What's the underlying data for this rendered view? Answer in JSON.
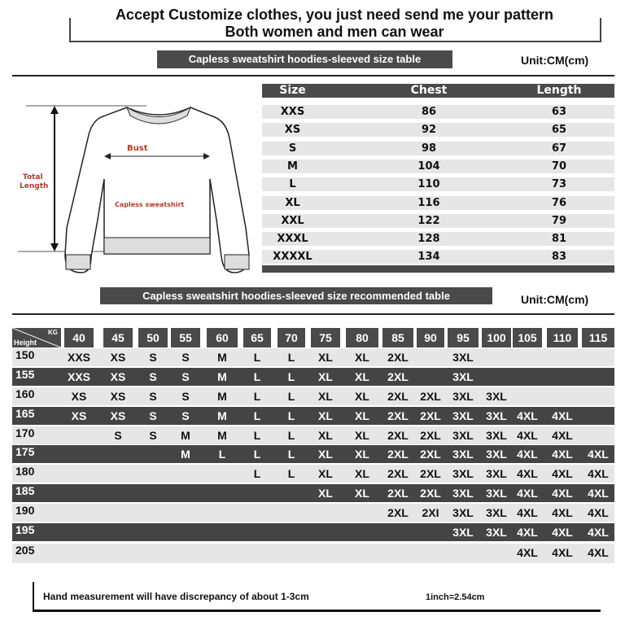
{
  "header": {
    "line1": "Accept Customize clothes, you just need send me your pattern",
    "line2": "Both women and men can wear"
  },
  "size_table": {
    "title": "Capless sweatshirt hoodies-sleeved size  table",
    "unit": "Unit:CM(cm)",
    "columns": [
      "Size",
      "Chest",
      "Length"
    ],
    "rows": [
      [
        "XXS",
        "86",
        "63"
      ],
      [
        "XS",
        "92",
        "65"
      ],
      [
        "S",
        "98",
        "67"
      ],
      [
        "M",
        "104",
        "70"
      ],
      [
        "L",
        "110",
        "73"
      ],
      [
        "XL",
        "116",
        "76"
      ],
      [
        "XXL",
        "122",
        "79"
      ],
      [
        "XXXL",
        "128",
        "81"
      ],
      [
        "XXXXL",
        "134",
        "83"
      ]
    ]
  },
  "diagram": {
    "bust_label": "Bust",
    "length_label_1": "Total",
    "length_label_2": "Length",
    "garment_label": "Capless sweatshirt"
  },
  "recommend_table": {
    "title": "Capless sweatshirt hoodies-sleeved size recommended table",
    "unit": "Unit:CM(cm)",
    "corner_kg": "KG",
    "corner_height": "Height",
    "weights": [
      "40",
      "45",
      "50",
      "55",
      "60",
      "65",
      "70",
      "75",
      "80",
      "85",
      "90",
      "95",
      "100",
      "105",
      "110",
      "115"
    ],
    "rows": [
      {
        "height": "150",
        "sizes": [
          "XXS",
          "XS",
          "S",
          "S",
          "M",
          "L",
          "L",
          "XL",
          "XL",
          "2XL",
          "",
          "3XL",
          "",
          "",
          "",
          ""
        ]
      },
      {
        "height": "155",
        "sizes": [
          "XXS",
          "XS",
          "S",
          "S",
          "M",
          "L",
          "L",
          "XL",
          "XL",
          "2XL",
          "",
          "3XL",
          "",
          "",
          "",
          ""
        ]
      },
      {
        "height": "160",
        "sizes": [
          "XS",
          "XS",
          "S",
          "S",
          "M",
          "L",
          "L",
          "XL",
          "XL",
          "2XL",
          "2XL",
          "3XL",
          "3XL",
          "",
          "",
          ""
        ]
      },
      {
        "height": "165",
        "sizes": [
          "XS",
          "XS",
          "S",
          "S",
          "M",
          "L",
          "L",
          "XL",
          "XL",
          "2XL",
          "2XL",
          "3XL",
          "3XL",
          "4XL",
          "4XL",
          ""
        ]
      },
      {
        "height": "170",
        "sizes": [
          "",
          "S",
          "S",
          "M",
          "M",
          "L",
          "L",
          "XL",
          "XL",
          "2XL",
          "2XL",
          "3XL",
          "3XL",
          "4XL",
          "4XL",
          ""
        ]
      },
      {
        "height": "175",
        "sizes": [
          "",
          "",
          "",
          "M",
          "L",
          "L",
          "L",
          "XL",
          "XL",
          "2XL",
          "2XL",
          "3XL",
          "3XL",
          "4XL",
          "4XL",
          "4XL"
        ]
      },
      {
        "height": "180",
        "sizes": [
          "",
          "",
          "",
          "",
          "",
          "L",
          "L",
          "XL",
          "XL",
          "2XL",
          "2XL",
          "3XL",
          "3XL",
          "4XL",
          "4XL",
          "4XL"
        ]
      },
      {
        "height": "185",
        "sizes": [
          "",
          "",
          "",
          "",
          "",
          "",
          "",
          "XL",
          "XL",
          "2XL",
          "2XL",
          "3XL",
          "3XL",
          "4XL",
          "4XL",
          "4XL"
        ]
      },
      {
        "height": "190",
        "sizes": [
          "",
          "",
          "",
          "",
          "",
          "",
          "",
          "",
          "",
          "2XL",
          "2XI",
          "3XL",
          "3XL",
          "4XL",
          "4XL",
          "4XL"
        ]
      },
      {
        "height": "195",
        "sizes": [
          "",
          "",
          "",
          "",
          "",
          "",
          "",
          "",
          "",
          "",
          "",
          "3XL",
          "3XL",
          "4XL",
          "4XL",
          "4XL"
        ]
      },
      {
        "height": "205",
        "sizes": [
          "",
          "",
          "",
          "",
          "",
          "",
          "",
          "",
          "",
          "",
          "",
          "",
          "",
          "4XL",
          "4XL",
          "4XL"
        ]
      }
    ]
  },
  "footer": {
    "note": "Hand measurement will have discrepancy of about  1-3cm",
    "conversion": "1inch=2.54cm"
  },
  "colors": {
    "bar": "#4a4a4a",
    "row_light": "#e6e6e6",
    "row_dark": "#444444",
    "label_red": "#b03a2e"
  }
}
